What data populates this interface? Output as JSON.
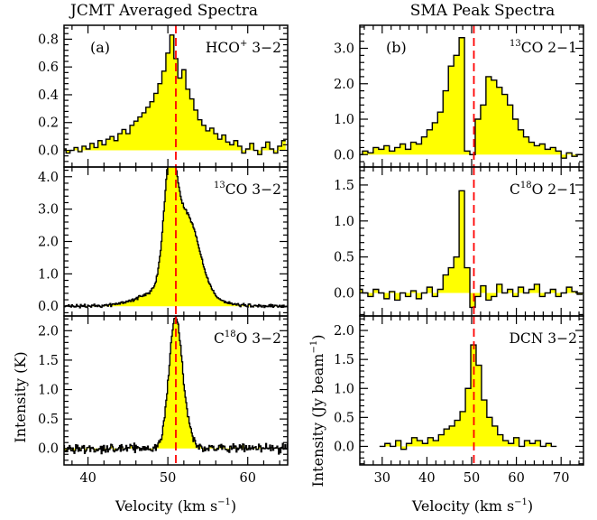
{
  "figure": {
    "left_title": "JCMT Averaged Spectra",
    "right_title": "SMA Peak Spectra",
    "left_xlabel": "Velocity (km s",
    "right_xlabel": "Velocity (km s",
    "xlabel_exponent": "−1",
    "xlabel_close": ")",
    "left_ylabel": "Intensity (K)",
    "right_ylabel": "Intensity (Jy beam",
    "right_ylabel_exponent": "−1",
    "right_ylabel_close": ")",
    "fill_color": "#ffff00",
    "line_color": "#000000",
    "marker_color": "#ff0000"
  },
  "chart_data": [
    {
      "type": "area",
      "panel_label": "(a)",
      "title": "JCMT Averaged Spectra",
      "line_label": {
        "prefix": "HCO",
        "sup": "+",
        "suffix": " 3−2"
      },
      "xlim": [
        37,
        65
      ],
      "ylim": [
        -0.12,
        0.9
      ],
      "xticks": [
        "40",
        "50",
        "60"
      ],
      "xtick_values": [
        40,
        50,
        60
      ],
      "yticks": [
        "0.0",
        "0.2",
        "0.4",
        "0.6",
        "0.8"
      ],
      "ytick_values": [
        0,
        0.2,
        0.4,
        0.6,
        0.8
      ],
      "show_xtick_labels": false,
      "vline": 51,
      "x": [
        37.0,
        37.5,
        38.0,
        38.5,
        39.0,
        39.5,
        40.0,
        40.5,
        41.0,
        41.5,
        42.0,
        42.5,
        43.0,
        43.5,
        44.0,
        44.5,
        45.0,
        45.5,
        46.0,
        46.5,
        47.0,
        47.5,
        48.0,
        48.5,
        49.0,
        49.5,
        50.0,
        50.5,
        51.0,
        51.5,
        52.0,
        52.5,
        53.0,
        53.5,
        54.0,
        54.5,
        55.0,
        55.5,
        56.0,
        56.5,
        57.0,
        57.5,
        58.0,
        58.5,
        59.0,
        59.5,
        60.0,
        60.5,
        61.0,
        61.5,
        62.0,
        62.5,
        63.0,
        63.5,
        64.0,
        64.5
      ],
      "values": [
        0.01,
        -0.02,
        0.0,
        0.02,
        -0.01,
        0.03,
        0.01,
        0.05,
        0.02,
        0.07,
        0.04,
        0.08,
        0.1,
        0.07,
        0.12,
        0.15,
        0.12,
        0.18,
        0.21,
        0.24,
        0.27,
        0.31,
        0.35,
        0.41,
        0.48,
        0.57,
        0.7,
        0.83,
        0.66,
        0.52,
        0.58,
        0.44,
        0.37,
        0.29,
        0.22,
        0.18,
        0.14,
        0.16,
        0.12,
        0.08,
        0.11,
        0.06,
        0.04,
        0.07,
        0.03,
        -0.02,
        0.01,
        0.05,
        0.0,
        -0.03,
        0.02,
        0.06,
        0.01,
        -0.02,
        0.03,
        0.07
      ]
    },
    {
      "type": "area",
      "line_label": {
        "prefix": "",
        "sup": "13",
        "suffix": "CO 3−2"
      },
      "xlim": [
        37,
        65
      ],
      "ylim": [
        -0.3,
        4.3
      ],
      "xticks": [
        "40",
        "50",
        "60"
      ],
      "xtick_values": [
        40,
        50,
        60
      ],
      "yticks": [
        "0.0",
        "1.0",
        "2.0",
        "3.0",
        "4.0"
      ],
      "ytick_values": [
        0,
        1,
        2,
        3,
        4
      ],
      "show_xtick_labels": false,
      "vline": 51,
      "profile": [
        {
          "center": 50.3,
          "amplitude": 3.3,
          "width": 0.75
        },
        {
          "center": 52.3,
          "amplitude": 2.3,
          "width": 1.6
        },
        {
          "center": 50.8,
          "amplitude": 0.6,
          "width": 3.5
        }
      ],
      "noise": 0.05,
      "xstart": 37.0,
      "xend": 65.0,
      "channel": 0.1
    },
    {
      "type": "area",
      "line_label": {
        "prefix": "C",
        "sup": "18",
        "suffix": "O 3−2"
      },
      "xlim": [
        37,
        65
      ],
      "ylim": [
        -0.28,
        2.25
      ],
      "xticks": [
        "40",
        "50",
        "60"
      ],
      "xtick_values": [
        40,
        50,
        60
      ],
      "yticks": [
        "0.0",
        "0.5",
        "1.0",
        "1.5",
        "2.0"
      ],
      "ytick_values": [
        0,
        0.5,
        1,
        1.5,
        2
      ],
      "show_xtick_labels": true,
      "vline": 51,
      "profile": [
        {
          "center": 50.9,
          "amplitude": 2.05,
          "width": 0.8
        },
        {
          "center": 52.0,
          "amplitude": 0.35,
          "width": 0.9
        }
      ],
      "noise": 0.07,
      "xstart": 37.0,
      "xend": 65.0,
      "channel": 0.1
    },
    {
      "type": "area",
      "panel_label": "(b)",
      "title": "SMA Peak Spectra",
      "line_label": {
        "prefix": "",
        "sup": "13",
        "suffix": "CO 2−1"
      },
      "xlim": [
        25,
        75
      ],
      "ylim": [
        -0.35,
        3.65
      ],
      "xticks": [
        "30",
        "40",
        "50",
        "60",
        "70"
      ],
      "xtick_values": [
        30,
        40,
        50,
        60,
        70
      ],
      "yticks": [
        "0.0",
        "1.0",
        "2.0",
        "3.0"
      ],
      "ytick_values": [
        0,
        1,
        2,
        3
      ],
      "show_xtick_labels": false,
      "vline": 50.5,
      "x": [
        25.0,
        26.2,
        27.4,
        28.6,
        29.8,
        31.0,
        32.2,
        33.4,
        34.6,
        35.8,
        37.0,
        38.2,
        39.4,
        40.6,
        41.8,
        43.0,
        44.2,
        45.4,
        46.6,
        47.8,
        49.0,
        50.2,
        51.4,
        52.6,
        53.8,
        55.0,
        56.2,
        57.4,
        58.6,
        59.8,
        61.0,
        62.2,
        63.4,
        64.6,
        65.8,
        67.0,
        68.2,
        69.4,
        70.6,
        71.8,
        73.0,
        74.2
      ],
      "values": [
        0.0,
        0.1,
        0.05,
        0.2,
        0.15,
        0.25,
        0.1,
        0.2,
        0.3,
        0.15,
        0.35,
        0.3,
        0.5,
        0.7,
        0.9,
        1.2,
        1.8,
        2.5,
        2.8,
        3.3,
        0.1,
        0.0,
        1.0,
        1.4,
        2.2,
        2.1,
        1.9,
        1.7,
        1.4,
        1.0,
        0.7,
        0.5,
        0.35,
        0.25,
        0.3,
        0.15,
        0.2,
        0.1,
        -0.1,
        0.05,
        -0.05,
        0.0
      ]
    },
    {
      "type": "area",
      "line_label": {
        "prefix": "C",
        "sup": "18",
        "suffix": "O 2−1"
      },
      "xlim": [
        25,
        75
      ],
      "ylim": [
        -0.32,
        1.75
      ],
      "xticks": [
        "30",
        "40",
        "50",
        "60",
        "70"
      ],
      "xtick_values": [
        30,
        40,
        50,
        60,
        70
      ],
      "yticks": [
        "0.0",
        "0.5",
        "1.0",
        "1.5"
      ],
      "ytick_values": [
        0,
        0.5,
        1,
        1.5
      ],
      "show_xtick_labels": false,
      "vline": 50.5,
      "x": [
        25.0,
        26.2,
        27.4,
        28.6,
        29.8,
        31.0,
        32.2,
        33.4,
        34.6,
        35.8,
        37.0,
        38.2,
        39.4,
        40.6,
        41.8,
        43.0,
        44.2,
        45.4,
        46.6,
        47.8,
        49.0,
        50.2,
        51.4,
        52.6,
        53.8,
        55.0,
        56.2,
        57.4,
        58.6,
        59.8,
        61.0,
        62.2,
        63.4,
        64.6,
        65.8,
        67.0,
        68.2,
        69.4,
        70.6,
        71.8,
        73.0,
        74.2
      ],
      "values": [
        0.05,
        0.0,
        -0.05,
        0.05,
        0.0,
        -0.08,
        0.02,
        -0.1,
        0.0,
        -0.05,
        0.03,
        -0.08,
        0.0,
        0.08,
        -0.05,
        0.05,
        0.25,
        0.35,
        0.5,
        1.42,
        0.35,
        -0.2,
        -0.05,
        0.1,
        -0.1,
        -0.05,
        0.12,
        0.0,
        0.05,
        -0.05,
        0.08,
        0.0,
        0.05,
        0.12,
        -0.05,
        0.0,
        0.05,
        -0.05,
        0.0,
        0.08,
        0.02,
        -0.02
      ]
    },
    {
      "type": "area",
      "line_label": {
        "prefix": "DCN 3−2",
        "sup": "",
        "suffix": ""
      },
      "xlim": [
        25,
        75
      ],
      "ylim": [
        -0.32,
        2.25
      ],
      "xticks": [
        "30",
        "40",
        "50",
        "60",
        "70"
      ],
      "xtick_values": [
        30,
        40,
        50,
        60,
        70
      ],
      "yticks": [
        "0.0",
        "0.5",
        "1.0",
        "1.5",
        "2.0"
      ],
      "ytick_values": [
        0,
        0.5,
        1,
        1.5,
        2
      ],
      "show_xtick_labels": true,
      "vline": 50.5,
      "x": [
        30.0,
        31.2,
        32.4,
        33.6,
        34.8,
        36.0,
        37.2,
        38.4,
        39.6,
        40.8,
        42.0,
        43.2,
        44.4,
        45.6,
        46.8,
        48.0,
        49.2,
        50.4,
        51.6,
        52.8,
        54.0,
        55.2,
        56.4,
        57.6,
        58.8,
        60.0,
        61.2,
        62.4,
        63.6,
        64.8,
        66.0,
        67.2,
        68.4
      ],
      "values": [
        0.0,
        0.05,
        0.0,
        0.1,
        -0.05,
        0.05,
        0.15,
        0.1,
        0.05,
        0.15,
        0.1,
        0.2,
        0.3,
        0.35,
        0.45,
        0.6,
        1.0,
        1.75,
        1.4,
        0.8,
        0.5,
        0.35,
        0.2,
        0.1,
        0.05,
        0.15,
        0.0,
        0.1,
        0.05,
        0.1,
        0.0,
        0.05,
        0.0
      ]
    }
  ]
}
